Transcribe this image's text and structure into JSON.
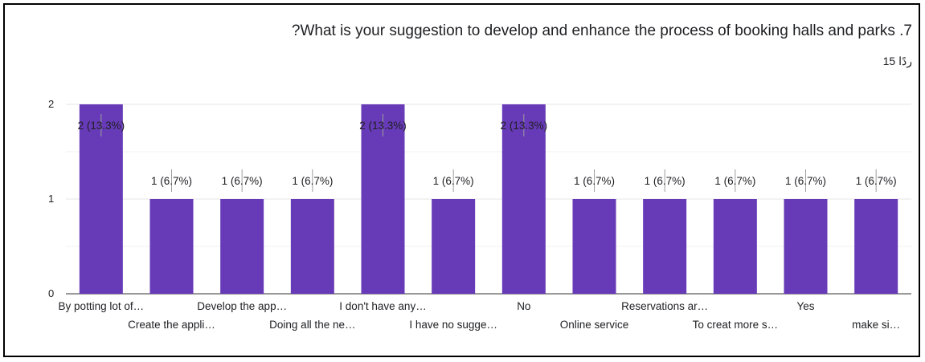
{
  "title": "?What is your suggestion to develop and enhance the process of booking halls and parks .7",
  "response_count": "15 ردًا",
  "colors": {
    "bar": "#673ab7",
    "grid": "#e6e6e6",
    "axis": "#333333",
    "text": "#202124",
    "frame": "#000000"
  },
  "chart_data": {
    "type": "bar",
    "title": "?What is your suggestion to develop and enhance the process of booking halls and parks .7",
    "xlabel": "",
    "ylabel": "",
    "ylim": [
      0,
      2
    ],
    "y_ticks": [
      "0",
      "1",
      "2"
    ],
    "grid": true,
    "categories": [
      "By potting lot of…",
      "Create the appli…",
      "Develop the app…",
      "Doing all the ne…",
      "I don't have any…",
      "I have no sugge…",
      "No",
      "Online service",
      "Reservations ar…",
      "To creat more s…",
      "Yes",
      "make si…"
    ],
    "values": [
      2,
      1,
      1,
      1,
      2,
      1,
      2,
      1,
      1,
      1,
      1,
      1
    ],
    "data_labels": [
      "2 (13.3%)",
      "1 (6.7%)",
      "1 (6.7%)",
      "1 (6.7%)",
      "2 (13.3%)",
      "1 (6.7%)",
      "2 (13.3%)",
      "1 (6.7%)",
      "1 (6.7%)",
      "1 (6.7%)",
      "1 (6.7%)",
      "1 (6.7%)"
    ]
  }
}
